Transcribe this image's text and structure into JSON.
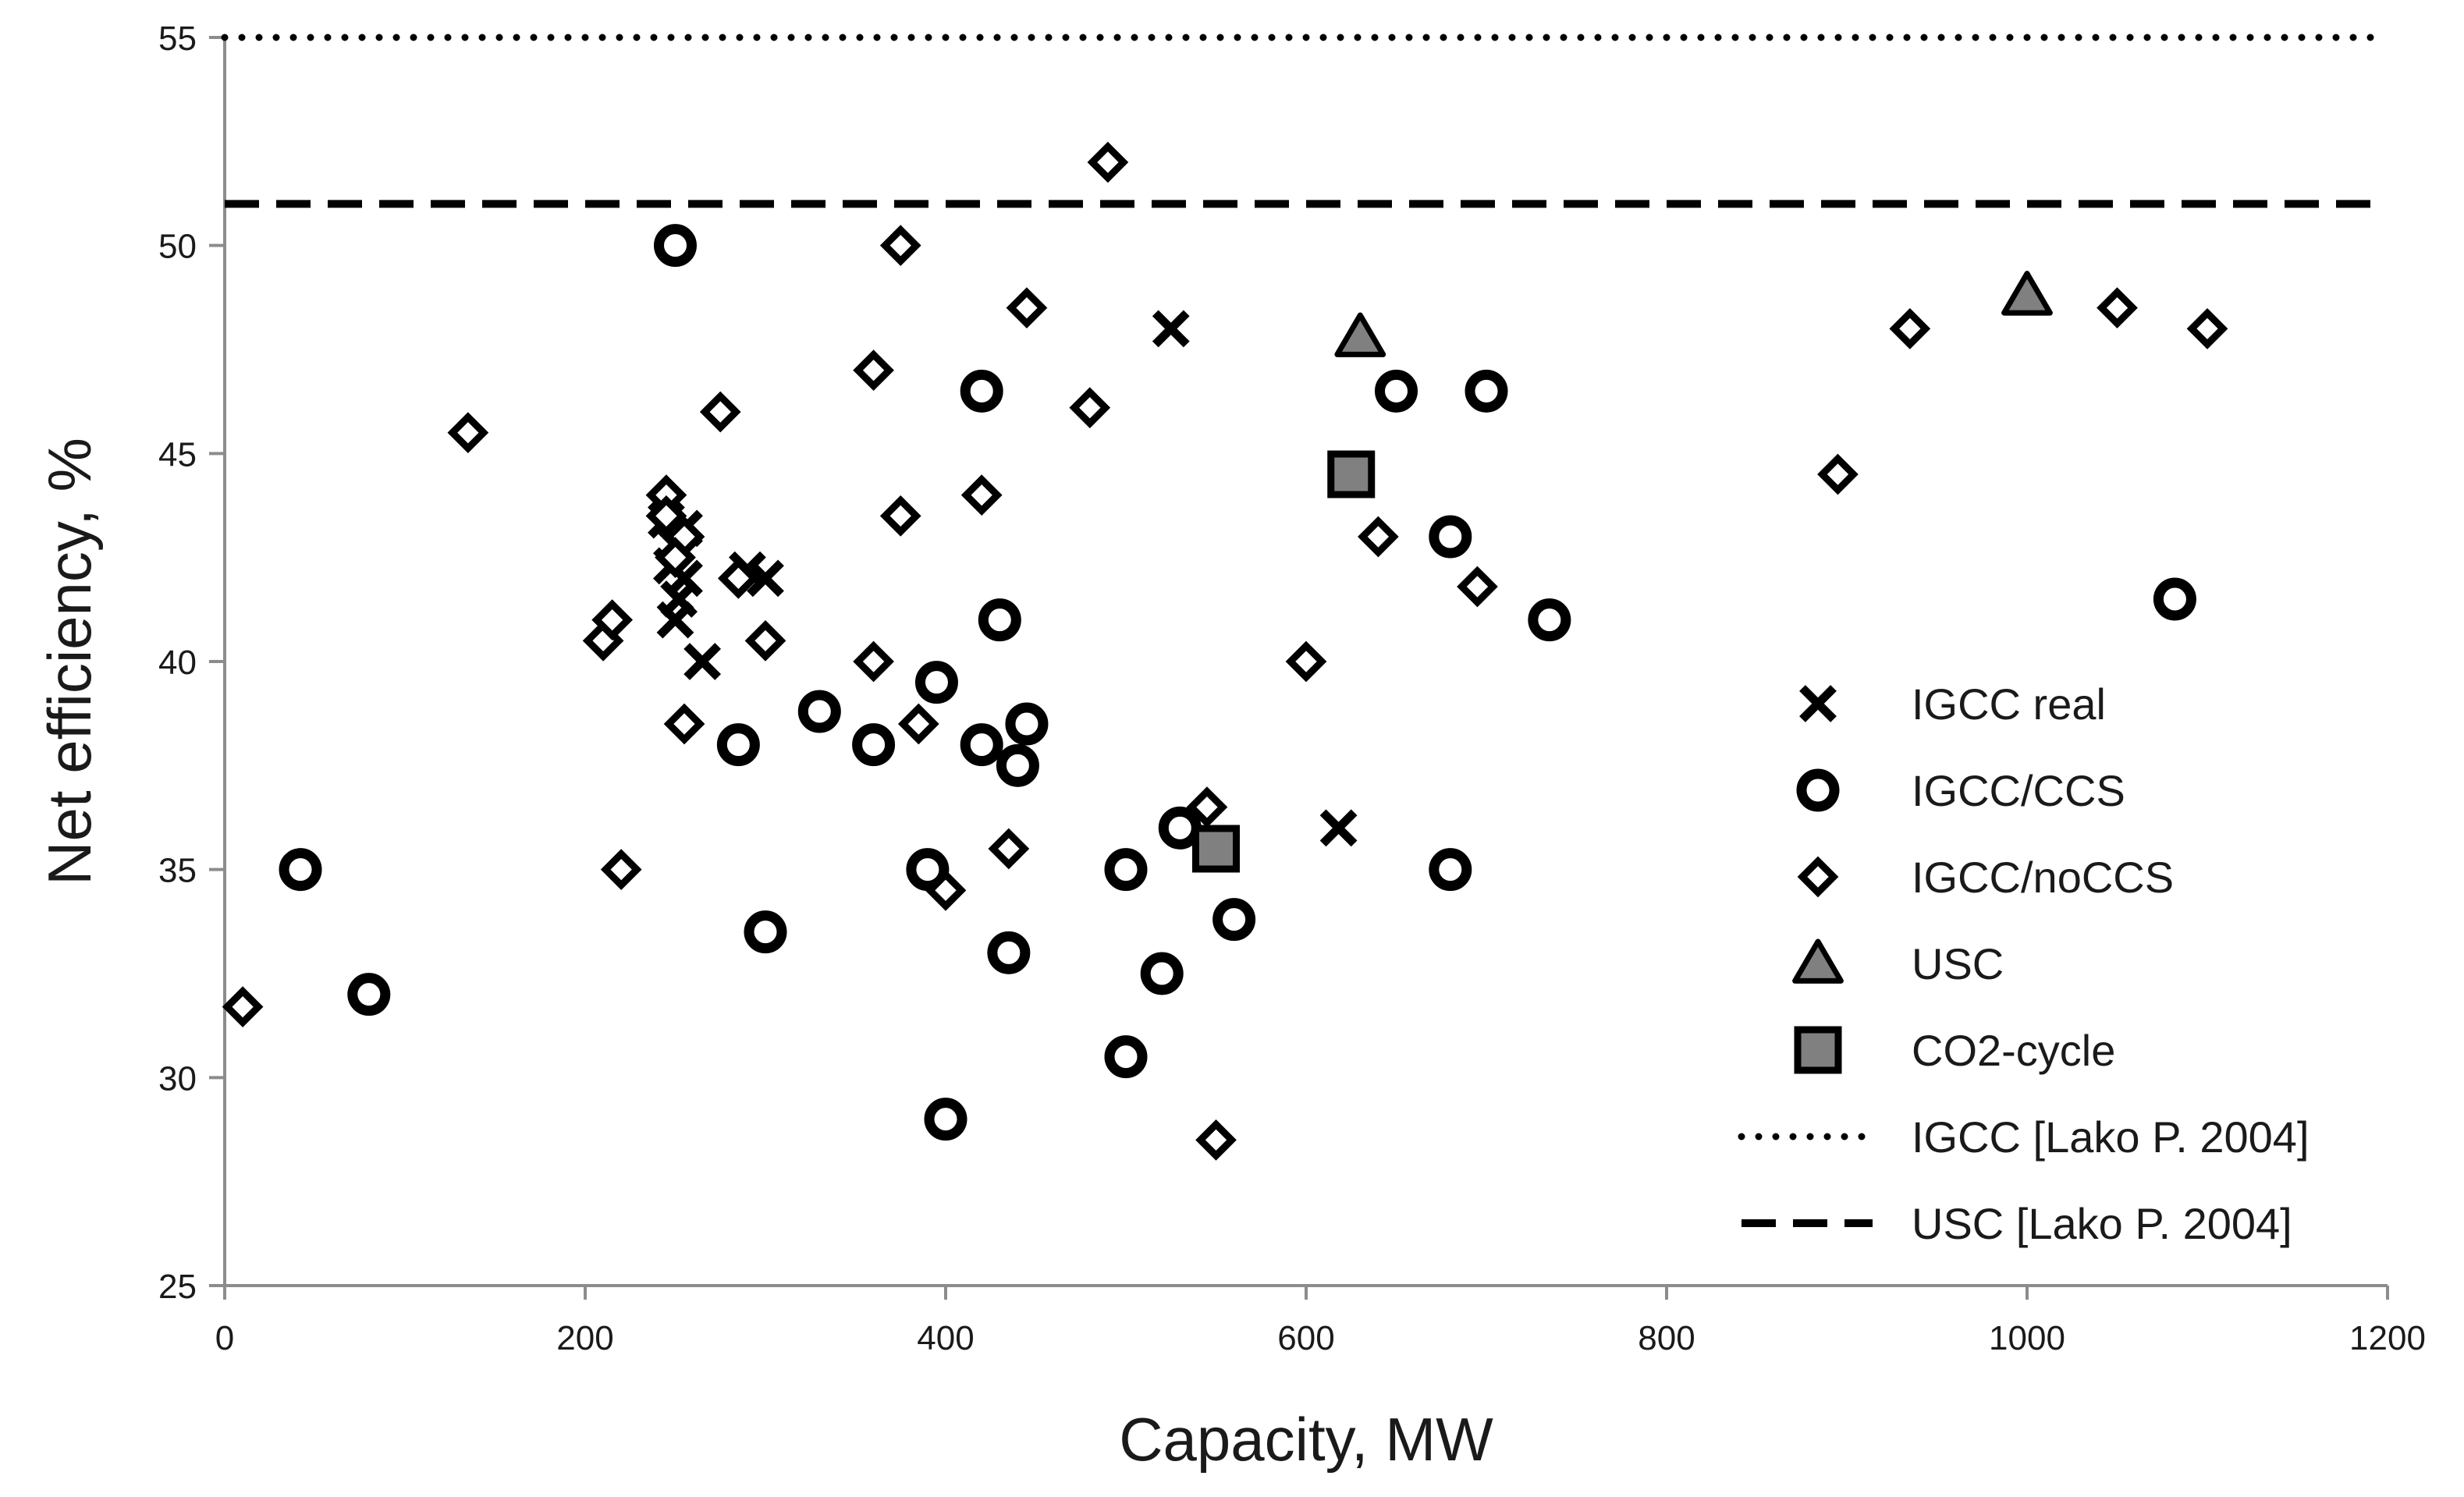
{
  "chart_data": {
    "type": "scatter",
    "xlabel": "Capacity, MW",
    "ylabel": "Net efficiency, %",
    "xlim": [
      0,
      1200
    ],
    "ylim": [
      25,
      55
    ],
    "xticks": [
      0,
      200,
      400,
      600,
      800,
      1000,
      1200
    ],
    "yticks": [
      25,
      30,
      35,
      40,
      45,
      50,
      55
    ],
    "grid": false,
    "legend_position": "right",
    "series": [
      {
        "name": "IGCC real",
        "marker": "x",
        "color": "#000000",
        "points": [
          [
            245,
            43.4
          ],
          [
            255,
            43.2
          ],
          [
            250,
            42.8
          ],
          [
            248,
            42.3
          ],
          [
            255,
            42.0
          ],
          [
            252,
            41.5
          ],
          [
            250,
            41.0
          ],
          [
            265,
            40.0
          ],
          [
            290,
            42.2
          ],
          [
            300,
            42.0
          ],
          [
            525,
            48.0
          ],
          [
            618,
            36.0
          ]
        ]
      },
      {
        "name": "IGCC/CCS",
        "marker": "circle",
        "color": "#000000",
        "points": [
          [
            250,
            50.0
          ],
          [
            42,
            35.0
          ],
          [
            80,
            32.0
          ],
          [
            285,
            38.0
          ],
          [
            300,
            33.5
          ],
          [
            330,
            38.8
          ],
          [
            360,
            38.0
          ],
          [
            390,
            35.0
          ],
          [
            395,
            39.5
          ],
          [
            400,
            29.0
          ],
          [
            420,
            46.5
          ],
          [
            420,
            38.0
          ],
          [
            430,
            41.0
          ],
          [
            435,
            33.0
          ],
          [
            440,
            37.5
          ],
          [
            445,
            38.5
          ],
          [
            500,
            35.0
          ],
          [
            500,
            30.5
          ],
          [
            520,
            32.5
          ],
          [
            530,
            36.0
          ],
          [
            560,
            33.8
          ],
          [
            650,
            46.5
          ],
          [
            680,
            43.0
          ],
          [
            680,
            35.0
          ],
          [
            700,
            46.5
          ],
          [
            735,
            41.0
          ],
          [
            1082,
            41.5
          ]
        ]
      },
      {
        "name": "IGCC/noCCS",
        "marker": "diamond",
        "color": "#000000",
        "points": [
          [
            10,
            31.7
          ],
          [
            135,
            45.5
          ],
          [
            210,
            40.5
          ],
          [
            215,
            41.0
          ],
          [
            220,
            35.0
          ],
          [
            245,
            44.0
          ],
          [
            245,
            43.5
          ],
          [
            255,
            43.0
          ],
          [
            250,
            42.5
          ],
          [
            255,
            38.5
          ],
          [
            275,
            46.0
          ],
          [
            285,
            42.0
          ],
          [
            300,
            40.5
          ],
          [
            360,
            47.0
          ],
          [
            360,
            40.0
          ],
          [
            375,
            50.0
          ],
          [
            375,
            43.5
          ],
          [
            385,
            38.5
          ],
          [
            400,
            34.5
          ],
          [
            420,
            44.0
          ],
          [
            435,
            35.5
          ],
          [
            445,
            48.5
          ],
          [
            480,
            46.1
          ],
          [
            490,
            52.0
          ],
          [
            545,
            36.5
          ],
          [
            550,
            28.5
          ],
          [
            600,
            40.0
          ],
          [
            640,
            43.0
          ],
          [
            695,
            41.8
          ],
          [
            895,
            44.5
          ],
          [
            935,
            48.0
          ],
          [
            1050,
            48.5
          ],
          [
            1100,
            48.0
          ]
        ]
      },
      {
        "name": "USC",
        "marker": "triangle",
        "color": "#808080",
        "points": [
          [
            630,
            47.8
          ],
          [
            1000,
            48.8
          ]
        ]
      },
      {
        "name": "CO2-cycle",
        "marker": "square",
        "color": "#808080",
        "points": [
          [
            625,
            44.5
          ],
          [
            550,
            35.5
          ]
        ]
      },
      {
        "name": "IGCC [Lako P. 2004]",
        "marker": "dotted-line",
        "color": "#000000",
        "y": 55
      },
      {
        "name": "USC [Lako P. 2004]",
        "marker": "dashed-line",
        "color": "#000000",
        "y": 51
      }
    ]
  }
}
